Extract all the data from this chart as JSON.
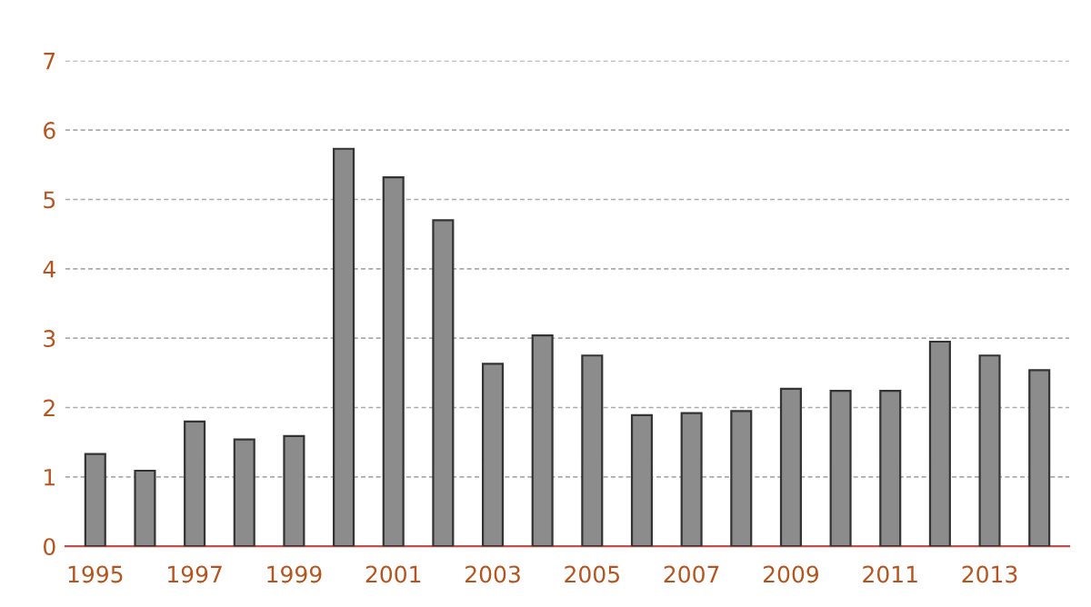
{
  "chart_data": {
    "type": "bar",
    "categories": [
      "1995",
      null,
      "1997",
      null,
      "1999",
      null,
      "2001",
      null,
      "2003",
      null,
      "2005",
      null,
      "2007",
      null,
      "2009",
      null,
      "2011",
      null,
      "2013",
      null
    ],
    "values": [
      1.33,
      1.09,
      1.8,
      1.54,
      1.59,
      5.73,
      5.32,
      4.7,
      2.63,
      3.04,
      2.75,
      1.89,
      1.92,
      1.95,
      2.27,
      2.24,
      2.24,
      2.95,
      2.75,
      2.54
    ],
    "color": "#8c8c8c",
    "ylim": [
      0,
      7
    ],
    "yticks": [
      0,
      1,
      2,
      3,
      4,
      5,
      6,
      7
    ],
    "grid": "y"
  }
}
